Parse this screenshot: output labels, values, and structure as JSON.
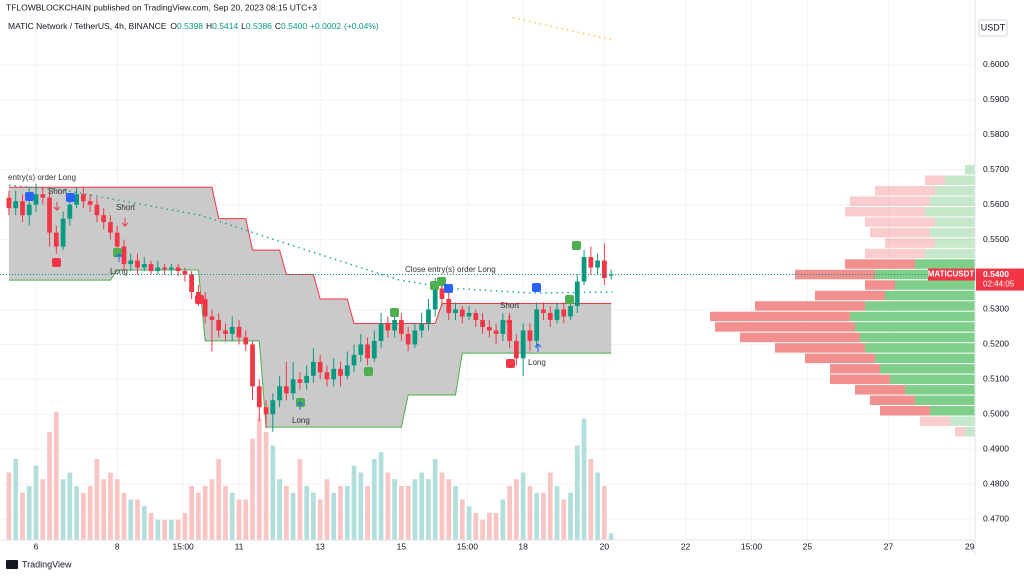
{
  "header": {
    "publisher": "TFLOWBLOCKCHAIN published on TradingView.com, Sep 20, 2023 08:15 UTC+3",
    "symbol": "MATIC Network / TetherUS, 4h, BINANCE",
    "ohlc": [
      {
        "key": "O",
        "value": 0.5398
      },
      {
        "key": "H",
        "value": 0.5414
      },
      {
        "key": "L",
        "value": 0.5386
      },
      {
        "key": "C",
        "value": {
          "value": 0.54,
          "label": "0.5400"
        }
      }
    ],
    "change": {
      "value": 0.0002,
      "label": "+0.0002"
    },
    "change_pct": {
      "value": 0.04,
      "label": "(+0.04%)"
    },
    "currency": "USDT",
    "footer": "TradingView"
  },
  "chart_data": {
    "type": "candlestick",
    "xlim": [
      5.113,
      29.13
    ],
    "ylim": [
      0.464,
      0.6186
    ],
    "grid": true,
    "up_color": "#089981",
    "down_color": "#f23645",
    "xticks": [
      6,
      8,
      {
        "value": 9.625,
        "label": "15:00"
      },
      11,
      13,
      15,
      {
        "value": 16.625,
        "label": "15:00"
      },
      18,
      20,
      22,
      {
        "value": 23.625,
        "label": "15:00"
      },
      25,
      27,
      29
    ],
    "yticks": [
      {
        "value": 0.47,
        "label": "0.4700"
      },
      {
        "value": 0.48,
        "label": "0.4800"
      },
      {
        "value": 0.49,
        "label": "0.4900"
      },
      {
        "value": 0.5,
        "label": "0.5000"
      },
      {
        "value": 0.51,
        "label": "0.5100"
      },
      {
        "value": 0.52,
        "label": "0.5200"
      },
      {
        "value": 0.53,
        "label": "0.5300"
      },
      {
        "value": 0.54,
        "label": "0.5400"
      },
      {
        "value": 0.55,
        "label": "0.5500"
      },
      {
        "value": 0.56,
        "label": "0.5600"
      },
      {
        "value": 0.57,
        "label": "0.5700"
      },
      {
        "value": 0.58,
        "label": "0.5800"
      },
      {
        "value": 0.59,
        "label": "0.5900"
      },
      {
        "value": 0.6,
        "label": "0.6000"
      }
    ],
    "x": [
      5.333,
      5.5,
      5.667,
      5.833,
      6,
      6.167,
      6.333,
      6.5,
      6.667,
      6.833,
      7,
      7.167,
      7.333,
      7.5,
      7.667,
      7.833,
      8,
      8.167,
      8.333,
      8.5,
      8.667,
      8.833,
      9,
      9.167,
      9.333,
      9.5,
      9.667,
      9.833,
      10,
      10.167,
      10.333,
      10.5,
      10.667,
      10.833,
      11,
      11.167,
      11.333,
      11.5,
      11.667,
      11.833,
      12,
      12.167,
      12.333,
      12.5,
      12.667,
      12.833,
      13,
      13.167,
      13.333,
      13.5,
      13.667,
      13.833,
      14,
      14.167,
      14.333,
      14.5,
      14.667,
      14.833,
      15,
      15.167,
      15.333,
      15.5,
      15.667,
      15.833,
      16,
      16.167,
      16.333,
      16.5,
      16.667,
      16.833,
      17,
      17.167,
      17.333,
      17.5,
      17.667,
      17.833,
      18,
      18.167,
      18.333,
      18.5,
      18.667,
      18.833,
      19,
      19.167,
      19.333,
      19.5,
      19.667,
      19.833,
      20,
      20.167
    ],
    "open": [
      0.562,
      0.559,
      0.561,
      0.557,
      0.56,
      0.563,
      0.562,
      0.552,
      0.548,
      0.556,
      0.56,
      0.563,
      0.561,
      0.56,
      0.557,
      0.555,
      0.552,
      0.548,
      0.543,
      0.544,
      0.542,
      0.543,
      0.541,
      0.542,
      0.5415,
      0.542,
      0.541,
      0.54,
      0.535,
      0.533,
      0.528,
      0.527,
      0.524,
      0.523,
      0.525,
      0.522,
      0.52,
      0.508,
      0.502,
      0.5,
      0.504,
      0.508,
      0.506,
      0.51,
      0.509,
      0.511,
      0.515,
      0.512,
      0.51,
      0.513,
      0.511,
      0.514,
      0.517,
      0.52,
      0.516,
      0.521,
      0.526,
      0.524,
      0.527,
      0.523,
      0.52,
      0.524,
      0.526,
      0.53,
      0.536,
      0.533,
      0.529,
      0.53,
      0.528,
      0.529,
      0.527,
      0.525,
      0.524,
      0.523,
      0.527,
      0.521,
      0.516,
      0.524,
      0.521,
      0.53,
      0.529,
      0.527,
      0.53,
      0.528,
      0.531,
      0.538,
      0.545,
      0.542,
      0.544,
      0.5398
    ],
    "high": [
      0.564,
      0.564,
      0.563,
      0.565,
      0.566,
      0.565,
      0.564,
      0.554,
      0.558,
      0.562,
      0.565,
      0.565,
      0.563,
      0.562,
      0.559,
      0.557,
      0.554,
      0.55,
      0.546,
      0.546,
      0.545,
      0.544,
      0.544,
      0.543,
      0.543,
      0.543,
      0.542,
      0.541,
      0.537,
      0.535,
      0.53,
      0.529,
      0.526,
      0.528,
      0.527,
      0.524,
      0.521,
      0.51,
      0.504,
      0.506,
      0.511,
      0.515,
      0.515,
      0.512,
      0.514,
      0.519,
      0.517,
      0.514,
      0.516,
      0.515,
      0.518,
      0.52,
      0.523,
      0.522,
      0.524,
      0.529,
      0.528,
      0.53,
      0.529,
      0.525,
      0.526,
      0.529,
      0.533,
      0.539,
      0.538,
      0.535,
      0.532,
      0.531,
      0.531,
      0.53,
      0.529,
      0.527,
      0.526,
      0.529,
      0.529,
      0.523,
      0.526,
      0.526,
      0.532,
      0.532,
      0.531,
      0.532,
      0.532,
      0.534,
      0.54,
      0.547,
      0.548,
      0.546,
      0.549,
      0.5414
    ],
    "low": [
      0.557,
      0.557,
      0.555,
      0.554,
      0.558,
      0.56,
      0.548,
      0.546,
      0.547,
      0.554,
      0.559,
      0.559,
      0.558,
      0.555,
      0.553,
      0.55,
      0.546,
      0.541,
      0.541,
      0.54,
      0.541,
      0.54,
      0.54,
      0.54,
      0.54,
      0.5395,
      0.538,
      0.533,
      0.531,
      0.526,
      0.518,
      0.522,
      0.521,
      0.521,
      0.52,
      0.518,
      0.504,
      0.498,
      0.496,
      0.495,
      0.502,
      0.504,
      0.504,
      0.507,
      0.507,
      0.509,
      0.51,
      0.508,
      0.508,
      0.508,
      0.51,
      0.512,
      0.515,
      0.514,
      0.515,
      0.519,
      0.522,
      0.522,
      0.521,
      0.518,
      0.519,
      0.522,
      0.524,
      0.528,
      0.531,
      0.527,
      0.527,
      0.526,
      0.527,
      0.525,
      0.523,
      0.522,
      0.52,
      0.521,
      0.519,
      0.514,
      0.511,
      0.518,
      0.519,
      0.527,
      0.525,
      0.526,
      0.526,
      0.527,
      0.529,
      0.537,
      0.54,
      0.54,
      0.537,
      0.5386
    ],
    "close": [
      0.559,
      0.561,
      0.557,
      0.56,
      0.563,
      0.562,
      0.552,
      0.548,
      0.556,
      0.56,
      0.563,
      0.561,
      0.56,
      0.557,
      0.555,
      0.552,
      0.548,
      0.543,
      0.544,
      0.542,
      0.543,
      0.541,
      0.542,
      0.5415,
      0.542,
      0.541,
      0.54,
      0.535,
      0.533,
      0.528,
      0.527,
      0.524,
      0.523,
      0.525,
      0.522,
      0.52,
      0.508,
      0.502,
      0.5,
      0.504,
      0.508,
      0.506,
      0.51,
      0.509,
      0.511,
      0.515,
      0.512,
      0.51,
      0.513,
      0.511,
      0.514,
      0.517,
      0.52,
      0.516,
      0.521,
      0.526,
      0.524,
      0.527,
      0.523,
      0.52,
      0.524,
      0.526,
      0.53,
      0.536,
      0.533,
      0.529,
      0.53,
      0.528,
      0.529,
      0.527,
      0.525,
      0.524,
      0.523,
      0.527,
      0.521,
      0.516,
      0.524,
      0.521,
      0.53,
      0.529,
      0.527,
      0.53,
      0.528,
      0.531,
      0.538,
      0.545,
      0.542,
      0.544,
      0.539,
      0.54
    ],
    "volume": {
      "ylim": [
        0,
        400
      ],
      "up_color": "#b2dfdb",
      "down_color": "#f8c4c4",
      "values": [
        50,
        60,
        35,
        40,
        55,
        45,
        80,
        95,
        45,
        50,
        40,
        35,
        40,
        60,
        45,
        50,
        45,
        35,
        30,
        30,
        25,
        20,
        15,
        15,
        15,
        15,
        20,
        40,
        35,
        40,
        45,
        60,
        40,
        35,
        30,
        30,
        75,
        90,
        80,
        70,
        45,
        40,
        35,
        60,
        40,
        35,
        30,
        45,
        35,
        40,
        40,
        55,
        50,
        40,
        60,
        65,
        50,
        45,
        40,
        40,
        45,
        50,
        45,
        60,
        50,
        45,
        40,
        30,
        25,
        20,
        15,
        20,
        20,
        30,
        40,
        45,
        50,
        40,
        35,
        35,
        50,
        40,
        30,
        35,
        70,
        90,
        60,
        50,
        40,
        5
      ]
    },
    "band": {
      "fill": "#c4c4c4",
      "upper_color": "#f23645",
      "lower_color": "#4caf50",
      "upper": [
        0.565,
        0.565,
        0.565,
        0.565,
        0.565,
        0.565,
        0.565,
        0.565,
        0.565,
        0.565,
        0.565,
        0.565,
        0.565,
        0.565,
        0.565,
        0.565,
        0.565,
        0.565,
        0.565,
        0.565,
        0.565,
        0.565,
        0.565,
        0.565,
        0.565,
        0.565,
        0.565,
        0.565,
        0.565,
        0.565,
        0.565,
        0.556,
        0.556,
        0.556,
        0.556,
        0.556,
        0.547,
        0.547,
        0.547,
        0.547,
        0.547,
        0.54,
        0.54,
        0.54,
        0.54,
        0.54,
        0.533,
        0.533,
        0.533,
        0.533,
        0.533,
        0.526,
        0.526,
        0.526,
        0.526,
        0.526,
        0.526,
        0.526,
        0.526,
        0.526,
        0.526,
        0.526,
        0.526,
        0.526,
        0.5317,
        0.5317,
        0.5317,
        0.5317,
        0.5317,
        0.5317,
        0.5317,
        0.5317,
        0.5317,
        0.5317,
        0.5317,
        0.5317,
        0.5317,
        0.5317,
        0.5317,
        0.5317,
        0.5317,
        0.5317,
        0.5317,
        0.5317,
        0.5317,
        0.5317,
        0.5317,
        0.5317,
        0.5317,
        0.5317
      ],
      "lower": [
        0.5384,
        0.5384,
        0.5384,
        0.5384,
        0.5384,
        0.5384,
        0.5384,
        0.5384,
        0.5384,
        0.5384,
        0.5384,
        0.5384,
        0.5384,
        0.5384,
        0.5384,
        0.5384,
        0.5413,
        0.5413,
        0.5413,
        0.5413,
        0.5413,
        0.5413,
        0.5413,
        0.5413,
        0.5413,
        0.5413,
        0.5413,
        0.5413,
        0.5413,
        0.521,
        0.521,
        0.521,
        0.521,
        0.521,
        0.521,
        0.521,
        0.521,
        0.521,
        0.4963,
        0.4963,
        0.4963,
        0.4963,
        0.4963,
        0.4963,
        0.4963,
        0.4963,
        0.4963,
        0.4963,
        0.4963,
        0.4963,
        0.4963,
        0.4963,
        0.4963,
        0.4963,
        0.4963,
        0.4963,
        0.4963,
        0.4963,
        0.4963,
        0.5055,
        0.5055,
        0.5055,
        0.5055,
        0.5055,
        0.5055,
        0.5055,
        0.5055,
        0.5175,
        0.5175,
        0.5175,
        0.5175,
        0.5175,
        0.5175,
        0.5175,
        0.5175,
        0.5175,
        0.5175,
        0.5175,
        0.5175,
        0.5175,
        0.5175,
        0.5175,
        0.5175,
        0.5175,
        0.5175,
        0.5175,
        0.5175,
        0.5175,
        0.5175,
        0.5175
      ]
    },
    "ma": {
      "color": "#26a69a",
      "x": [
        5.333,
        6.667,
        10.04,
        12.5,
        14.96,
        16.2,
        18.2,
        20.2
      ],
      "values": [
        0.5656,
        0.5642,
        0.557,
        0.5476,
        0.5384,
        0.5361,
        0.5347,
        0.535
      ]
    },
    "ma2": {
      "color": "#f5c842",
      "x": [
        17.75,
        20.2
      ],
      "values": [
        0.6135,
        0.6072
      ]
    },
    "profile": {
      "xlim": [
        0,
        400
      ],
      "value_area": [
        0.499,
        0.545
      ],
      "up_color": "#7fcf8a",
      "down_color": "#f29090",
      "prices": [
        0.495,
        0.498,
        0.501,
        0.504,
        0.507,
        0.51,
        0.513,
        0.516,
        0.519,
        0.522,
        0.525,
        0.528,
        0.531,
        0.534,
        0.537,
        0.54,
        0.543,
        0.546,
        0.549,
        0.552,
        0.555,
        0.558,
        0.561,
        0.564,
        0.567,
        0.57
      ],
      "up": [
        10,
        25,
        45,
        60,
        70,
        85,
        95,
        100,
        110,
        115,
        120,
        125,
        110,
        90,
        80,
        100,
        60,
        50,
        40,
        45,
        40,
        50,
        45,
        40,
        30,
        10
      ],
      "down": [
        10,
        30,
        50,
        45,
        50,
        60,
        50,
        70,
        90,
        120,
        140,
        140,
        110,
        70,
        30,
        80,
        70,
        60,
        50,
        60,
        70,
        80,
        80,
        60,
        20,
        0
      ]
    },
    "price_tag": {
      "symbol": "MATICUSDT",
      "price": {
        "value": 0.54,
        "label": "0.5400"
      },
      "countdown": "02:44:05",
      "color": "#f23645"
    },
    "annotations": [
      "entry(s) order Long",
      "Short",
      "Short",
      "Long",
      "Long",
      "Close entry(s) order Long",
      "Short",
      "Long"
    ]
  }
}
